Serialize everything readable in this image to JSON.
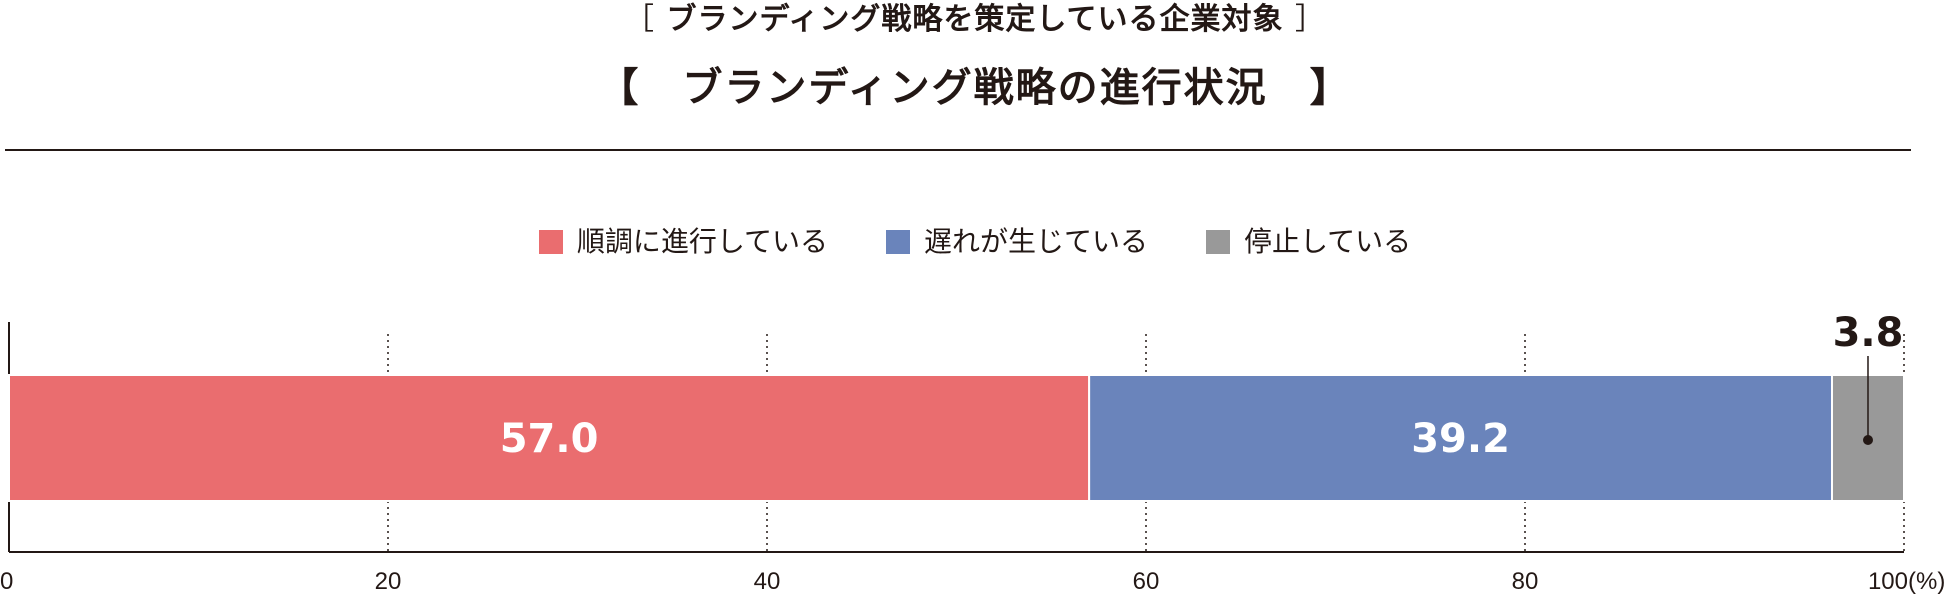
{
  "header": {
    "bracket_open": "［",
    "subtitle": "ブランディング戦略を策定している企業対象",
    "bracket_close": "］",
    "title": "【　ブランディング戦略の進行状況　】"
  },
  "chart_data": {
    "type": "bar",
    "orientation": "horizontal",
    "stacked": true,
    "series": [
      {
        "name": "順調に進行している",
        "values": [
          57.0
        ],
        "color": "#ea6d6f"
      },
      {
        "name": "遅れが生じている",
        "values": [
          39.2
        ],
        "color": "#6a84bb"
      },
      {
        "name": "停止している",
        "values": [
          3.8
        ],
        "color": "#999999"
      }
    ],
    "data_labels": [
      "57.0",
      "39.2",
      "3.8"
    ],
    "xlim": [
      0,
      100
    ],
    "xticks": [
      "0",
      "20",
      "40",
      "60",
      "80",
      "100"
    ],
    "x_unit": "(%)",
    "legend_position": "top",
    "grid": "dotted vertical"
  }
}
